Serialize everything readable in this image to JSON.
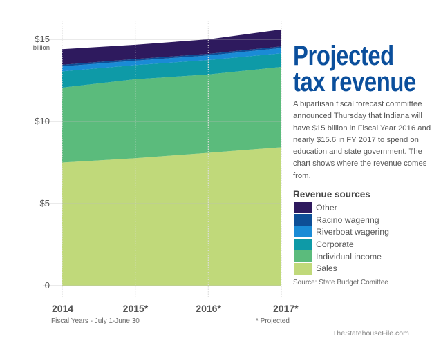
{
  "title_line1": "Projected",
  "title_line2": "tax revenue",
  "description": "A bipartisan fiscal forecast committee announced Thursday that Indiana will have $15 billion in Fiscal Year 2016 and nearly $15.6 in FY 2017 to spend on education and state government. The chart shows where the revenue comes from.",
  "legend_title": "Revenue sources",
  "source": "Source: State Budget Comittee",
  "credit": "TheStatehouseFile.com",
  "x_note": "Fiscal Years - July 1-June 30",
  "projected_note": "* Projected",
  "y_unit": "billion",
  "chart_data": {
    "type": "area",
    "stacked": true,
    "title": "Projected tax revenue",
    "categories": [
      "2014",
      "2015*",
      "2016*",
      "2017*"
    ],
    "xlabel": "Fiscal Years - July 1-June 30",
    "ylabel": "",
    "ylim": [
      0,
      15.6
    ],
    "y_ticks": [
      0,
      5,
      10,
      15
    ],
    "y_tick_labels": [
      "0",
      "$5",
      "$10",
      "$15"
    ],
    "grid": true,
    "legend_position": "right",
    "series": [
      {
        "name": "Sales",
        "color": "#c0d97a",
        "values": [
          7.5,
          7.76,
          8.09,
          8.43
        ]
      },
      {
        "name": "Individual income",
        "color": "#5bbb7c",
        "values": [
          4.56,
          4.81,
          4.77,
          4.89
        ]
      },
      {
        "name": "Corporate",
        "color": "#0e9aa7",
        "values": [
          0.99,
          0.86,
          0.88,
          0.83
        ]
      },
      {
        "name": "Riverboat wagering",
        "color": "#1a8bd6",
        "values": [
          0.3,
          0.27,
          0.28,
          0.32
        ]
      },
      {
        "name": "Racino wagering",
        "color": "#0d4e96",
        "values": [
          0.1,
          0.1,
          0.1,
          0.1
        ]
      },
      {
        "name": "Other",
        "color": "#2e1a5e",
        "values": [
          0.95,
          0.87,
          0.88,
          1.03
        ]
      }
    ],
    "legend_order": [
      "Other",
      "Racino wagering",
      "Riverboat wagering",
      "Corporate",
      "Individual income",
      "Sales"
    ]
  }
}
